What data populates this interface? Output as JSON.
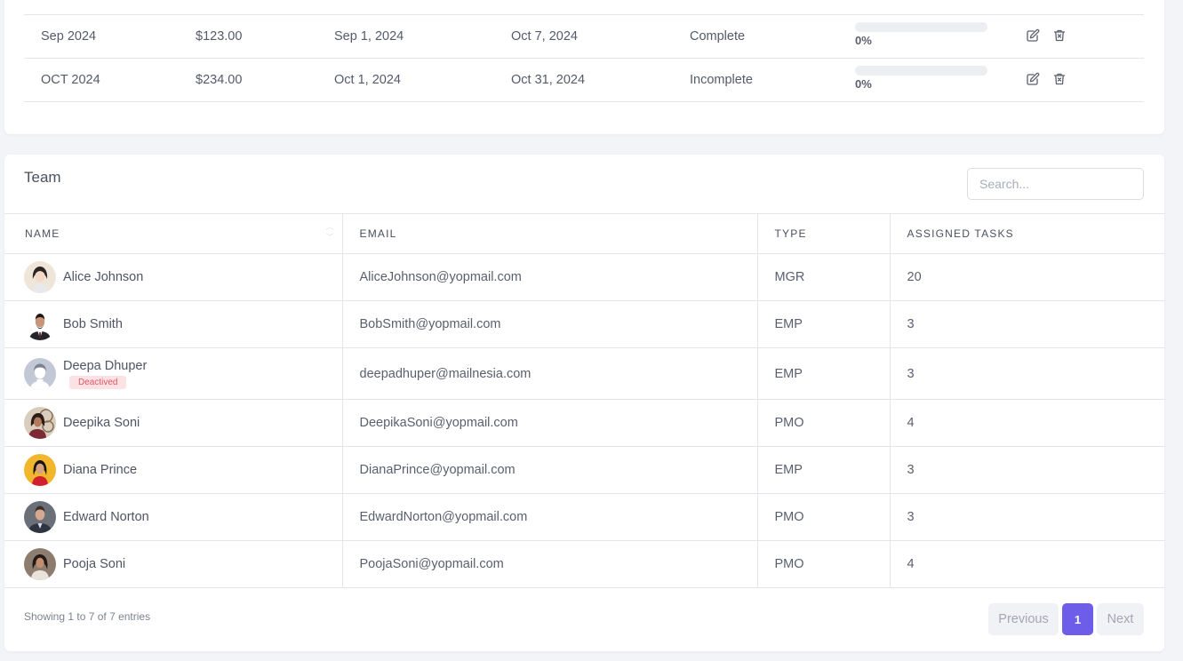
{
  "billing": {
    "rows": [
      {
        "period": "Sep 2024",
        "amount": "$123.00",
        "start": "Sep 1, 2024",
        "end": "Oct 7, 2024",
        "status": "Complete",
        "progress_label": "0%",
        "progress": 0
      },
      {
        "period": "OCT 2024",
        "amount": "$234.00",
        "start": "Oct 1, 2024",
        "end": "Oct 31, 2024",
        "status": "Incomplete",
        "progress_label": "0%",
        "progress": 0
      }
    ],
    "icons": {
      "edit": "edit-icon",
      "delete": "trash-icon"
    }
  },
  "team": {
    "title": "Team",
    "search_placeholder": "Search...",
    "columns": [
      "NAME",
      "EMAIL",
      "TYPE",
      "ASSIGNED TASKS"
    ],
    "members": [
      {
        "name": "Alice Johnson",
        "email": "AliceJohnson@yopmail.com",
        "type": "MGR",
        "tasks": "20"
      },
      {
        "name": "Bob Smith",
        "email": "BobSmith@yopmail.com",
        "type": "EMP",
        "tasks": "3"
      },
      {
        "name": "Deepa Dhuper",
        "badge": "Deactived",
        "email": "deepadhuper@mailnesia.com",
        "type": "EMP",
        "tasks": "3"
      },
      {
        "name": "Deepika Soni",
        "email": "DeepikaSoni@yopmail.com",
        "type": "PMO",
        "tasks": "4"
      },
      {
        "name": "Diana Prince",
        "email": "DianaPrince@yopmail.com",
        "type": "EMP",
        "tasks": "3"
      },
      {
        "name": "Edward Norton",
        "email": "EdwardNorton@yopmail.com",
        "type": "PMO",
        "tasks": "3"
      },
      {
        "name": "Pooja Soni",
        "email": "PoojaSoni@yopmail.com",
        "type": "PMO",
        "tasks": "4"
      }
    ],
    "footer": {
      "entries": "Showing 1 to 7 of 7 entries",
      "previous": "Previous",
      "page": "1",
      "next": "Next"
    }
  },
  "colors": {
    "accent": "#6e5de8",
    "badge_bg": "#fbe3e5",
    "badge_text": "#e25563",
    "border": "#e3e5ec",
    "page_bg": "#f3f4f8"
  }
}
